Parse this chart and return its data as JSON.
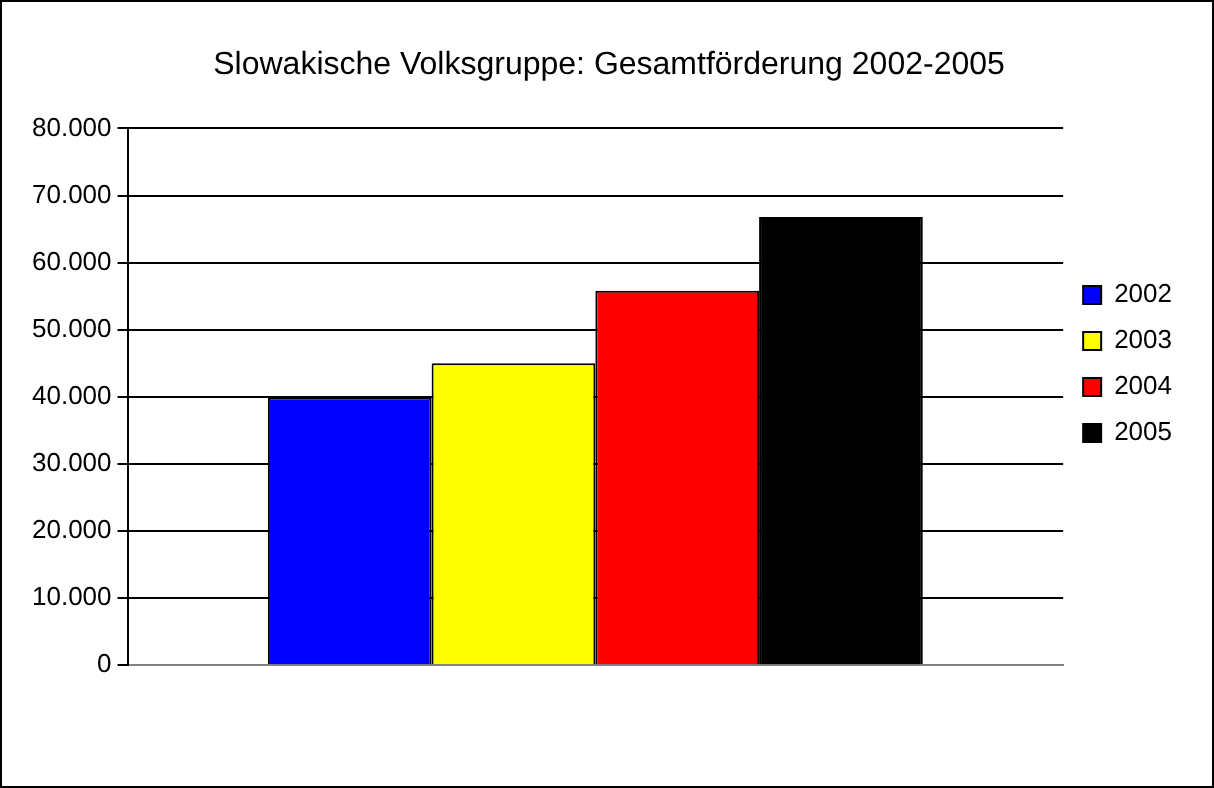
{
  "chart_data": {
    "type": "bar",
    "title": "Slowakische Volksgruppe: Gesamtförderung 2002-2005",
    "categories": [
      null
    ],
    "series": [
      {
        "name": "2002",
        "color": "#0000ff",
        "values": [
          39900
        ]
      },
      {
        "name": "2003",
        "color": "#ffff00",
        "values": [
          45000
        ]
      },
      {
        "name": "2004",
        "color": "#ff0000",
        "values": [
          55800
        ]
      },
      {
        "name": "2005",
        "color": "#000000",
        "values": [
          66800
        ]
      }
    ],
    "ylim": [
      0,
      80000
    ],
    "yticks": [
      {
        "value": 0,
        "label": "0"
      },
      {
        "value": 10000,
        "label": "10.000"
      },
      {
        "value": 20000,
        "label": "20.000"
      },
      {
        "value": 30000,
        "label": "30.000"
      },
      {
        "value": 40000,
        "label": "40.000"
      },
      {
        "value": 50000,
        "label": "50.000"
      },
      {
        "value": 60000,
        "label": "60.000"
      },
      {
        "value": 70000,
        "label": "70.000"
      },
      {
        "value": 80000,
        "label": "80.000"
      }
    ],
    "grid": "y",
    "legend": "right"
  }
}
